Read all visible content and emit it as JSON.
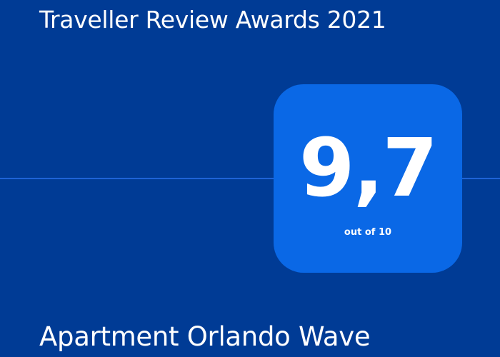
{
  "award": {
    "title": "Traveller Review Awards 2021"
  },
  "score": {
    "value": "9,7",
    "scale_label": "out of 10"
  },
  "property": {
    "name": "Apartment Orlando Wave"
  },
  "colors": {
    "background": "#003b95",
    "score_box": "#0a68e6",
    "divider": "#1e63d6",
    "text": "#ffffff"
  }
}
